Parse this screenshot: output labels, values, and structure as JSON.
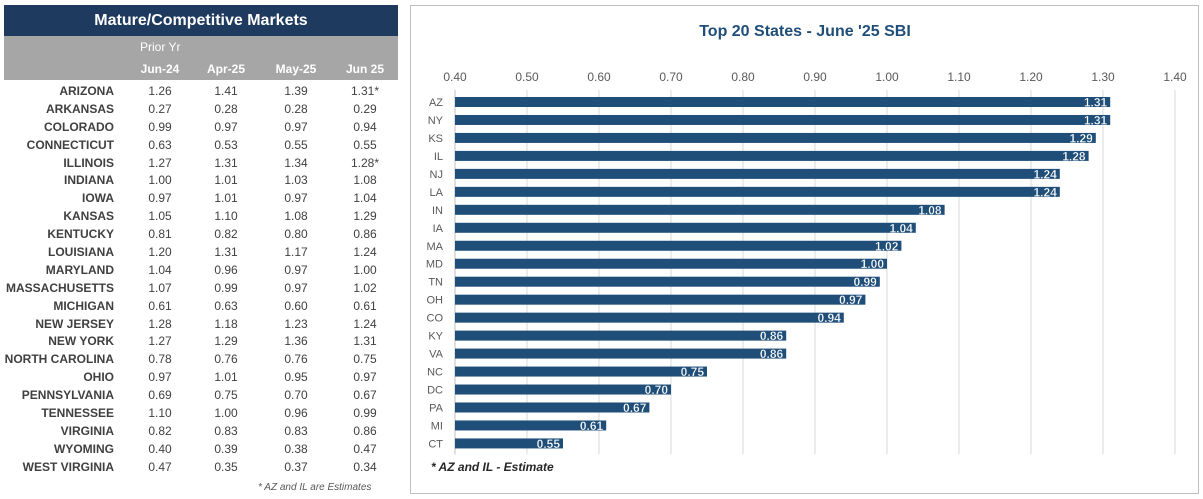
{
  "table": {
    "title": "Mature/Competitive Markets",
    "prior_label": "Prior Yr",
    "columns": [
      "Jun-24",
      "Apr-25",
      "May-25",
      "Jun 25"
    ],
    "rows": [
      {
        "state": "ARIZONA",
        "values": [
          "1.26",
          "1.41",
          "1.39",
          "1.31*"
        ]
      },
      {
        "state": "ARKANSAS",
        "values": [
          "0.27",
          "0.28",
          "0.28",
          "0.29"
        ]
      },
      {
        "state": "COLORADO",
        "values": [
          "0.99",
          "0.97",
          "0.97",
          "0.94"
        ]
      },
      {
        "state": "CONNECTICUT",
        "values": [
          "0.63",
          "0.53",
          "0.55",
          "0.55"
        ]
      },
      {
        "state": "ILLINOIS",
        "values": [
          "1.27",
          "1.31",
          "1.34",
          "1.28*"
        ]
      },
      {
        "state": "INDIANA",
        "values": [
          "1.00",
          "1.01",
          "1.03",
          "1.08"
        ]
      },
      {
        "state": "IOWA",
        "values": [
          "0.97",
          "1.01",
          "0.97",
          "1.04"
        ]
      },
      {
        "state": "KANSAS",
        "values": [
          "1.05",
          "1.10",
          "1.08",
          "1.29"
        ]
      },
      {
        "state": "KENTUCKY",
        "values": [
          "0.81",
          "0.82",
          "0.80",
          "0.86"
        ]
      },
      {
        "state": "LOUISIANA",
        "values": [
          "1.20",
          "1.31",
          "1.17",
          "1.24"
        ]
      },
      {
        "state": "MARYLAND",
        "values": [
          "1.04",
          "0.96",
          "0.97",
          "1.00"
        ]
      },
      {
        "state": "MASSACHUSETTS",
        "values": [
          "1.07",
          "0.99",
          "0.97",
          "1.02"
        ]
      },
      {
        "state": "MICHIGAN",
        "values": [
          "0.61",
          "0.63",
          "0.60",
          "0.61"
        ]
      },
      {
        "state": "NEW JERSEY",
        "values": [
          "1.28",
          "1.18",
          "1.23",
          "1.24"
        ]
      },
      {
        "state": "NEW YORK",
        "values": [
          "1.27",
          "1.29",
          "1.36",
          "1.31"
        ]
      },
      {
        "state": "NORTH CAROLINA",
        "values": [
          "0.78",
          "0.76",
          "0.76",
          "0.75"
        ]
      },
      {
        "state": "OHIO",
        "values": [
          "0.97",
          "1.01",
          "0.95",
          "0.97"
        ]
      },
      {
        "state": "PENNSYLVANIA",
        "values": [
          "0.69",
          "0.75",
          "0.70",
          "0.67"
        ]
      },
      {
        "state": "TENNESSEE",
        "values": [
          "1.10",
          "1.00",
          "0.96",
          "0.99"
        ]
      },
      {
        "state": "VIRGINIA",
        "values": [
          "0.82",
          "0.83",
          "0.83",
          "0.86"
        ]
      },
      {
        "state": "WYOMING",
        "values": [
          "0.40",
          "0.39",
          "0.38",
          "0.47"
        ]
      },
      {
        "state": "WEST VIRGINIA",
        "values": [
          "0.47",
          "0.35",
          "0.37",
          "0.34"
        ]
      }
    ],
    "footnote": "* AZ and IL are Estimates"
  },
  "chart_data": {
    "type": "bar",
    "orientation": "horizontal",
    "title": "Top 20 States -  June '25 SBI",
    "categories": [
      "AZ",
      "NY",
      "KS",
      "IL",
      "NJ",
      "LA",
      "IN",
      "IA",
      "MA",
      "MD",
      "TN",
      "OH",
      "CO",
      "KY",
      "VA",
      "NC",
      "DC",
      "PA",
      "MI",
      "CT"
    ],
    "values": [
      1.31,
      1.31,
      1.29,
      1.28,
      1.24,
      1.24,
      1.08,
      1.04,
      1.02,
      1.0,
      0.99,
      0.97,
      0.94,
      0.86,
      0.86,
      0.75,
      0.7,
      0.67,
      0.61,
      0.55
    ],
    "labels": [
      "1.31",
      "1.31",
      "1.29",
      "1.28",
      "1.24",
      "1.24",
      "1.08",
      "1.04",
      "1.02",
      "1.00",
      "0.99",
      "0.97",
      "0.94",
      "0.86",
      "0.86",
      "0.75",
      "0.70",
      "0.67",
      "0.61",
      "0.55"
    ],
    "xlim": [
      0.4,
      1.4
    ],
    "xticks": [
      "0.40",
      "0.50",
      "0.60",
      "0.70",
      "0.80",
      "0.90",
      "1.00",
      "1.10",
      "1.20",
      "1.30",
      "1.40"
    ],
    "xtick_values": [
      0.4,
      0.5,
      0.6,
      0.7,
      0.8,
      0.9,
      1.0,
      1.1,
      1.2,
      1.3,
      1.4
    ],
    "grid": true,
    "bar_color": "#1f4e79",
    "footnote": "* AZ and IL - Estimate"
  }
}
